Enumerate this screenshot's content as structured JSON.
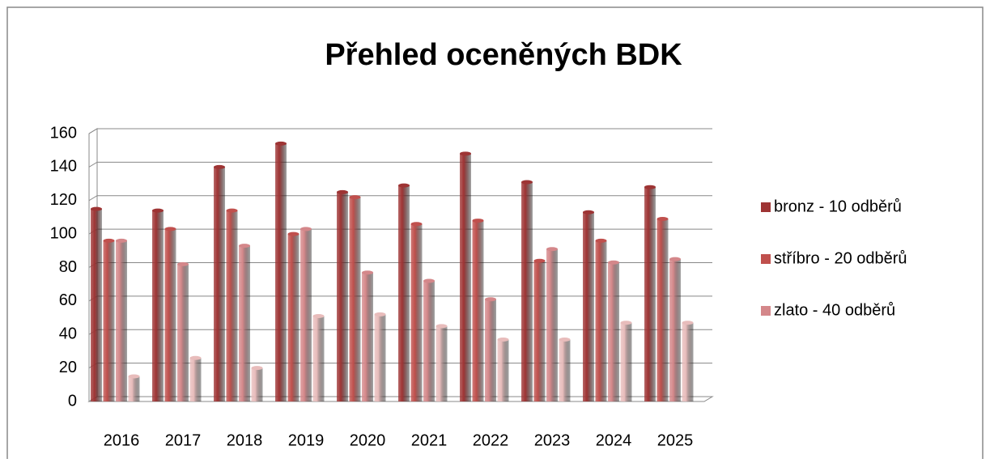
{
  "chart_data": {
    "type": "bar",
    "title": "Přehled oceněných BDK",
    "categories": [
      "2016",
      "2017",
      "2018",
      "2019",
      "2020",
      "2021",
      "2022",
      "2023",
      "2024",
      "2025"
    ],
    "series": [
      {
        "name": "bronz - 10 odběrů",
        "color": "#9e3434",
        "values": [
          115,
          114,
          140,
          154,
          125,
          129,
          148,
          131,
          113,
          128
        ]
      },
      {
        "name": "stříbro - 20 odběrů",
        "color": "#c0504d",
        "values": [
          96,
          103,
          114,
          100,
          122,
          106,
          108,
          84,
          96,
          109
        ]
      },
      {
        "name": "zlato - 40 odběrů",
        "color": "#d4878a",
        "values": [
          96,
          82,
          93,
          103,
          77,
          72,
          61,
          91,
          83,
          85
        ]
      },
      {
        "name": null,
        "color": "#e8bcbb",
        "values": [
          15,
          26,
          20,
          51,
          52,
          45,
          37,
          37,
          47,
          47
        ]
      }
    ],
    "ylim": [
      0,
      160
    ],
    "yticks": [
      0,
      20,
      40,
      60,
      80,
      100,
      120,
      140,
      160
    ],
    "grid": true,
    "legend": "right"
  }
}
